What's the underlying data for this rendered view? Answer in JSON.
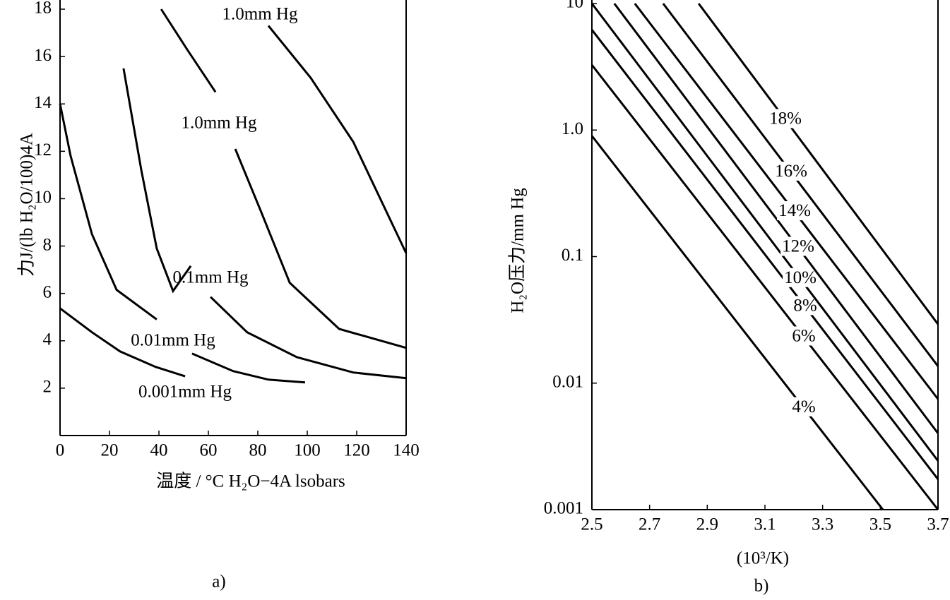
{
  "chart_data": [
    {
      "type": "line",
      "caption": "a)",
      "xlabel": "温度 / °C  H₂O−4A lsobars",
      "ylabel": "力J/(lb H₂O/100)4A",
      "xlim": [
        0,
        140
      ],
      "xticks": [
        0,
        20,
        40,
        60,
        80,
        100,
        120,
        140
      ],
      "ylim": [
        0,
        18
      ],
      "yticks": [
        2,
        4,
        6,
        8,
        10,
        12,
        14,
        16,
        18
      ],
      "yscale": "linear",
      "series": [
        {
          "name": "0.001mm Hg",
          "color": "#000000",
          "x": [
            0,
            12.9,
            24.3,
            38.6,
            50.6
          ],
          "values": [
            5.37,
            4.36,
            3.55,
            2.9,
            2.5
          ]
        },
        {
          "name": "0.01mm Hg",
          "color": "#000000",
          "x": [
            0,
            4.3,
            12.9,
            22.9,
            39.1,
            null,
            53.4,
            70,
            84.3,
            99.1
          ],
          "values": [
            14.0,
            11.8,
            8.5,
            6.15,
            4.9,
            null,
            3.46,
            2.72,
            2.36,
            2.24
          ]
        },
        {
          "name": "0.1mm Hg",
          "color": "#000000",
          "x": [
            25.7,
            32.9,
            39.1,
            45.7,
            52.9,
            null,
            60.9,
            75.7,
            95.7,
            118.6,
            140
          ],
          "values": [
            15.5,
            11.2,
            7.9,
            6.1,
            7.16,
            null,
            5.85,
            4.36,
            3.31,
            2.66,
            2.42
          ]
        },
        {
          "name": "1.0mm Hg",
          "color": "#000000",
          "x": [
            40.9,
            51.4,
            62.9,
            null,
            70.9,
            81.4,
            92.9,
            112.9,
            140
          ],
          "values": [
            18.0,
            16.3,
            14.5,
            null,
            12.1,
            9.43,
            6.45,
            4.5,
            3.7
          ]
        },
        {
          "name": "1.0mm Hg",
          "color": "#000000",
          "x": [
            84.3,
            101.4,
            118.6,
            140
          ],
          "values": [
            17.3,
            15.1,
            12.4,
            7.7
          ]
        }
      ]
    },
    {
      "type": "line",
      "caption": "b)",
      "xlabel": "(10³/K)",
      "ylabel": "H₂O压力/mm Hg",
      "xlim": [
        2.5,
        3.7
      ],
      "xticks": [
        2.5,
        2.7,
        2.9,
        3.1,
        3.3,
        3.5,
        3.7
      ],
      "ylim": [
        0.001,
        10
      ],
      "yticks": [
        0.001,
        0.01,
        0.1,
        {
          "value": 1,
          "label": "1.0"
        },
        10
      ],
      "yscale": "log",
      "series": [
        {
          "name": "4%",
          "color": "#000000",
          "x": [
            2.5,
            3.509
          ],
          "values": [
            0.9,
            0.001
          ]
        },
        {
          "name": "6%",
          "color": "#000000",
          "x": [
            2.5,
            3.7
          ],
          "values": [
            3.27,
            0.001
          ]
        },
        {
          "name": "8%",
          "color": "#000000",
          "x": [
            2.5,
            3.7
          ],
          "values": [
            6.2,
            0.00174
          ]
        },
        {
          "name": "10%",
          "color": "#000000",
          "x": [
            2.5,
            3.7
          ],
          "values": [
            10,
            0.00243
          ]
        },
        {
          "name": "12%",
          "color": "#000000",
          "x": [
            2.578,
            3.7
          ],
          "values": [
            10,
            0.00401
          ]
        },
        {
          "name": "14%",
          "color": "#000000",
          "x": [
            2.649,
            3.7
          ],
          "values": [
            10,
            0.00748
          ]
        },
        {
          "name": "16%",
          "color": "#000000",
          "x": [
            2.747,
            3.7
          ],
          "values": [
            10,
            0.0136
          ]
        },
        {
          "name": "18%",
          "color": "#000000",
          "x": [
            2.87,
            3.7
          ],
          "values": [
            10,
            0.0292
          ]
        }
      ]
    }
  ]
}
